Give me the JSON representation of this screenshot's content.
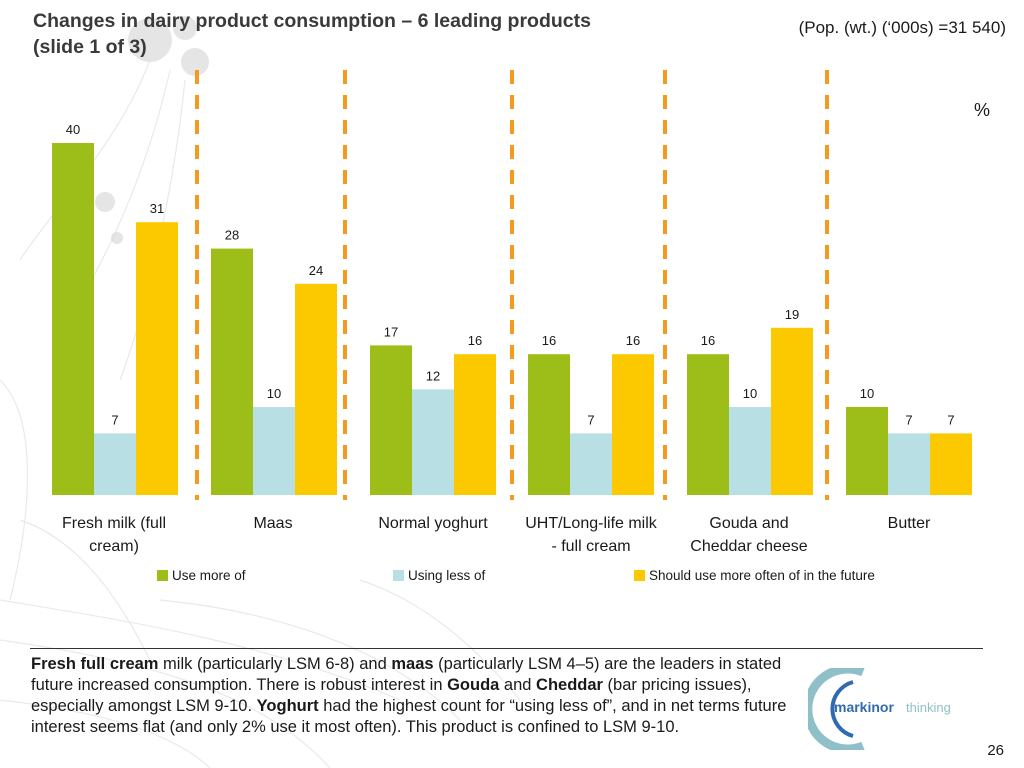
{
  "slide": {
    "title_line1": "Changes in dairy product consumption – 6 leading products",
    "title_line2": "(slide 1 of 3)",
    "population_note": "(Pop. (wt.) (‘000s) =31 540)",
    "unit": "%",
    "page_number": "26"
  },
  "summary": {
    "segments": [
      {
        "text": "Fresh full cream",
        "bold": true
      },
      {
        "text": " milk (particularly LSM 6-8) and ",
        "bold": false
      },
      {
        "text": "maas",
        "bold": true
      },
      {
        "text": " (particularly LSM 4–5) are the leaders in stated future increased consumption. There is robust interest in ",
        "bold": false
      },
      {
        "text": "Gouda",
        "bold": true
      },
      {
        "text": " and ",
        "bold": false
      },
      {
        "text": "Cheddar",
        "bold": true
      },
      {
        "text": " (bar pricing issues), especially amongst LSM 9-10. ",
        "bold": false
      },
      {
        "text": "Yoghurt",
        "bold": true
      },
      {
        "text": " had the highest count for “using less of”, and in net terms future interest seems flat (and only 2% use it most often). This product is confined to LSM 9-10.",
        "bold": false
      }
    ]
  },
  "logo": {
    "brand": "markinor",
    "tagline": "thinking"
  },
  "colors": {
    "use_more": "#9dbd18",
    "using_less": "#b8dfe4",
    "future": "#fcc800",
    "divider": "#f39a1f",
    "logo_blue": "#2f6bae",
    "logo_teal": "#8fc0c9"
  },
  "chart_data": {
    "type": "bar",
    "categories": [
      [
        "Fresh milk (full",
        "cream)"
      ],
      [
        "Maas"
      ],
      [
        "Normal yoghurt"
      ],
      [
        "UHT/Long-life milk",
        "- full cream"
      ],
      [
        "Gouda and",
        "Cheddar cheese"
      ],
      [
        "Butter"
      ]
    ],
    "series": [
      {
        "name": "Use more of",
        "values": [
          40,
          28,
          17,
          16,
          16,
          10
        ]
      },
      {
        "name": "Using less of",
        "values": [
          7,
          10,
          12,
          7,
          10,
          7
        ]
      },
      {
        "name": "Should use more often of in the future",
        "values": [
          31,
          24,
          16,
          16,
          19,
          7
        ]
      }
    ],
    "ylim": [
      0,
      40
    ],
    "grid": false,
    "legend_position": "bottom"
  }
}
